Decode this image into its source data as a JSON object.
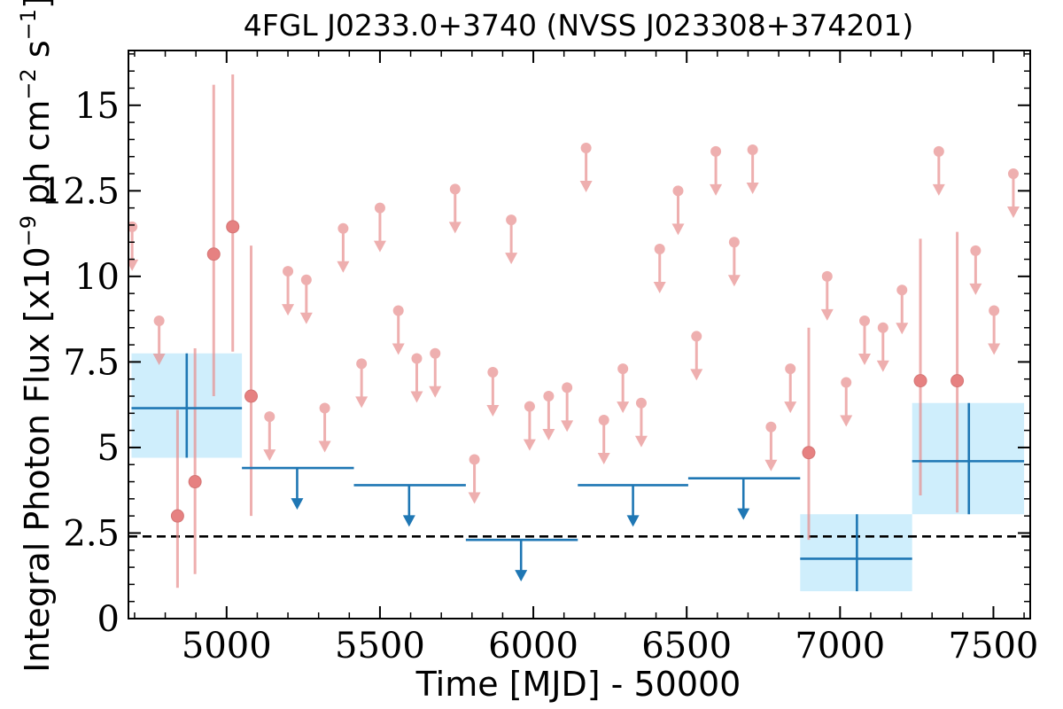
{
  "chart_data": {
    "type": "scatter",
    "title": "4FGL J0233.0+3740 (NVSS J023308+374201)",
    "xlabel": "Time [MJD] - 50000",
    "ylabel": "Integral Photon Flux [x10",
    "ylabel_exp1": "−9",
    "ylabel_mid": " ph cm",
    "ylabel_exp2": "−2",
    "ylabel_mid2": " s",
    "ylabel_exp3": "−1",
    "ylabel_end": "]",
    "xlim": [
      4680,
      7620
    ],
    "ylim": [
      0,
      16.6
    ],
    "x_ticks": [
      5000,
      5500,
      6000,
      6500,
      7000,
      7500
    ],
    "x_tick_labels": [
      "5000",
      "5500",
      "6000",
      "6500",
      "7000",
      "7500"
    ],
    "y_ticks": [
      0,
      2.5,
      5,
      7.5,
      10,
      12.5,
      15
    ],
    "y_tick_labels": [
      "0",
      "2.5",
      "5",
      "7.5",
      "10",
      "12.5",
      "15"
    ],
    "reference_line": {
      "y": 2.4,
      "style": "dashed",
      "color": "#000000"
    },
    "colors": {
      "short_bin": "#e88e8e",
      "long_bin": "#1f77b4",
      "long_bin_fill": "#cfeefc"
    },
    "short_bin_upper_limits": [
      {
        "x": 4692,
        "y": 11.45
      },
      {
        "x": 4780,
        "y": 8.7
      },
      {
        "x": 5140,
        "y": 5.9
      },
      {
        "x": 5200,
        "y": 10.15
      },
      {
        "x": 5260,
        "y": 9.9
      },
      {
        "x": 5320,
        "y": 6.15
      },
      {
        "x": 5380,
        "y": 11.4
      },
      {
        "x": 5440,
        "y": 7.45
      },
      {
        "x": 5500,
        "y": 12.0
      },
      {
        "x": 5560,
        "y": 9.0
      },
      {
        "x": 5620,
        "y": 7.6
      },
      {
        "x": 5680,
        "y": 7.75
      },
      {
        "x": 5745,
        "y": 12.55
      },
      {
        "x": 5808,
        "y": 4.65
      },
      {
        "x": 5868,
        "y": 7.2
      },
      {
        "x": 5928,
        "y": 11.65
      },
      {
        "x": 5988,
        "y": 6.2
      },
      {
        "x": 6050,
        "y": 6.5
      },
      {
        "x": 6110,
        "y": 6.75
      },
      {
        "x": 6172,
        "y": 13.75
      },
      {
        "x": 6230,
        "y": 5.8
      },
      {
        "x": 6292,
        "y": 7.3
      },
      {
        "x": 6352,
        "y": 6.3
      },
      {
        "x": 6412,
        "y": 10.8
      },
      {
        "x": 6472,
        "y": 12.5
      },
      {
        "x": 6532,
        "y": 8.25
      },
      {
        "x": 6595,
        "y": 13.65
      },
      {
        "x": 6655,
        "y": 11.0
      },
      {
        "x": 6715,
        "y": 13.7
      },
      {
        "x": 6775,
        "y": 5.6
      },
      {
        "x": 6838,
        "y": 7.3
      },
      {
        "x": 6958,
        "y": 10.0
      },
      {
        "x": 7020,
        "y": 6.9
      },
      {
        "x": 7080,
        "y": 8.7
      },
      {
        "x": 7140,
        "y": 8.5
      },
      {
        "x": 7202,
        "y": 9.6
      },
      {
        "x": 7322,
        "y": 13.65
      },
      {
        "x": 7442,
        "y": 10.75
      },
      {
        "x": 7502,
        "y": 9.0
      },
      {
        "x": 7565,
        "y": 13.0
      }
    ],
    "short_bin_detections": [
      {
        "x": 4840,
        "y": 3.0,
        "ylo": 0.9,
        "yhi": 6.1
      },
      {
        "x": 4897,
        "y": 4.0,
        "ylo": 1.3,
        "yhi": 7.9
      },
      {
        "x": 4958,
        "y": 10.65,
        "ylo": 6.5,
        "yhi": 15.6
      },
      {
        "x": 5020,
        "y": 11.45,
        "ylo": 7.8,
        "yhi": 15.9
      },
      {
        "x": 5080,
        "y": 6.5,
        "ylo": 3.0,
        "yhi": 10.9
      },
      {
        "x": 6898,
        "y": 4.85,
        "ylo": 2.3,
        "yhi": 8.5
      },
      {
        "x": 7262,
        "y": 6.95,
        "ylo": 3.6,
        "yhi": 11.1
      },
      {
        "x": 7382,
        "y": 6.95,
        "ylo": 3.1,
        "yhi": 11.3
      }
    ],
    "long_bin_detections": [
      {
        "xlo": 4690,
        "xhi": 5050,
        "x": 4870,
        "y": 6.15,
        "ylo": 4.7,
        "yhi": 7.75
      },
      {
        "xlo": 6870,
        "xhi": 7235,
        "x": 7055,
        "y": 1.75,
        "ylo": 0.8,
        "yhi": 3.05
      },
      {
        "xlo": 7235,
        "xhi": 7600,
        "x": 7420,
        "y": 4.6,
        "ylo": 3.05,
        "yhi": 6.3
      }
    ],
    "long_bin_upper_limits": [
      {
        "xlo": 5050,
        "xhi": 5415,
        "x": 5230,
        "y": 4.4
      },
      {
        "xlo": 5415,
        "xhi": 5780,
        "x": 5595,
        "y": 3.9
      },
      {
        "xlo": 5780,
        "xhi": 6145,
        "x": 5960,
        "y": 2.3
      },
      {
        "xlo": 6145,
        "xhi": 6505,
        "x": 6325,
        "y": 3.9
      },
      {
        "xlo": 6505,
        "xhi": 6870,
        "x": 6685,
        "y": 4.1
      }
    ]
  }
}
